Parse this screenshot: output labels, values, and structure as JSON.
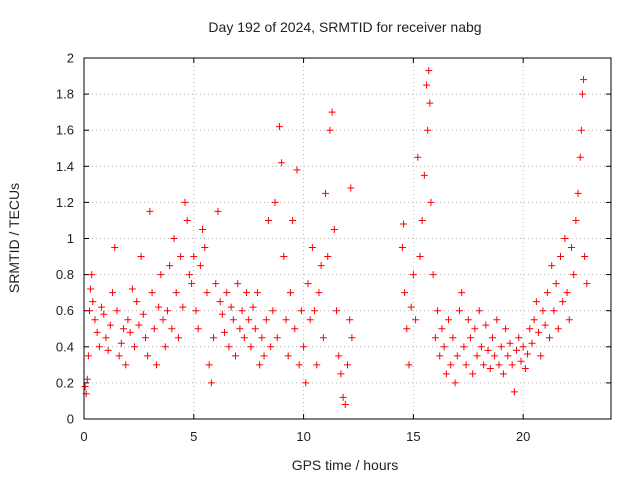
{
  "chart_data": {
    "type": "scatter",
    "title": "Day 192 of 2024, SRMTID for receiver nabg",
    "xlabel": "GPS time / hours",
    "ylabel": "SRMTID / TECUs",
    "xlim": [
      0,
      24
    ],
    "ylim": [
      0,
      2
    ],
    "xticks": [
      0,
      5,
      10,
      15,
      20
    ],
    "yticks": [
      0,
      0.2,
      0.4,
      0.6,
      0.8,
      1,
      1.2,
      1.4,
      1.6,
      1.8,
      2
    ],
    "xtick_labels": [
      "0",
      "5",
      "10",
      "15",
      "20"
    ],
    "ytick_labels": [
      "0",
      "0.2",
      "0.4",
      "0.6",
      "0.8",
      "1",
      "1.2",
      "1.4",
      "1.6",
      "1.8",
      "2"
    ],
    "grid": true,
    "marker": "+",
    "series_color": "#ff0000",
    "series": [
      {
        "name": "SRMTID",
        "points": [
          [
            0.05,
            0.18
          ],
          [
            0.1,
            0.14
          ],
          [
            0.15,
            0.22
          ],
          [
            0.2,
            0.35
          ],
          [
            0.25,
            0.6
          ],
          [
            0.3,
            0.72
          ],
          [
            0.35,
            0.8
          ],
          [
            0.4,
            0.65
          ],
          [
            0.5,
            0.55
          ],
          [
            0.6,
            0.48
          ],
          [
            0.7,
            0.4
          ],
          [
            0.8,
            0.62
          ],
          [
            0.9,
            0.58
          ],
          [
            1.0,
            0.45
          ],
          [
            1.1,
            0.38
          ],
          [
            1.2,
            0.52
          ],
          [
            1.3,
            0.7
          ],
          [
            1.4,
            0.95
          ],
          [
            1.5,
            0.6
          ],
          [
            1.6,
            0.35
          ],
          [
            1.7,
            0.42
          ],
          [
            1.8,
            0.5
          ],
          [
            1.9,
            0.3
          ],
          [
            2.0,
            0.55
          ],
          [
            2.1,
            0.48
          ],
          [
            2.2,
            0.72
          ],
          [
            2.3,
            0.4
          ],
          [
            2.4,
            0.65
          ],
          [
            2.5,
            0.52
          ],
          [
            2.6,
            0.9
          ],
          [
            2.7,
            0.58
          ],
          [
            2.8,
            0.45
          ],
          [
            2.9,
            0.35
          ],
          [
            3.0,
            1.15
          ],
          [
            3.1,
            0.7
          ],
          [
            3.2,
            0.5
          ],
          [
            3.3,
            0.3
          ],
          [
            3.4,
            0.62
          ],
          [
            3.5,
            0.8
          ],
          [
            3.6,
            0.55
          ],
          [
            3.7,
            0.4
          ],
          [
            3.8,
            0.6
          ],
          [
            3.9,
            0.85
          ],
          [
            4.0,
            0.5
          ],
          [
            4.1,
            1.0
          ],
          [
            4.2,
            0.7
          ],
          [
            4.3,
            0.45
          ],
          [
            4.4,
            0.9
          ],
          [
            4.5,
            0.62
          ],
          [
            4.6,
            1.2
          ],
          [
            4.7,
            1.1
          ],
          [
            4.8,
            0.8
          ],
          [
            4.9,
            0.75
          ],
          [
            5.0,
            0.9
          ],
          [
            5.1,
            0.6
          ],
          [
            5.2,
            0.5
          ],
          [
            5.3,
            0.85
          ],
          [
            5.4,
            1.05
          ],
          [
            5.5,
            0.95
          ],
          [
            5.6,
            0.7
          ],
          [
            5.7,
            0.3
          ],
          [
            5.8,
            0.2
          ],
          [
            5.9,
            0.45
          ],
          [
            6.0,
            0.75
          ],
          [
            6.1,
            1.15
          ],
          [
            6.2,
            0.65
          ],
          [
            6.3,
            0.58
          ],
          [
            6.4,
            0.48
          ],
          [
            6.5,
            0.7
          ],
          [
            6.6,
            0.4
          ],
          [
            6.7,
            0.62
          ],
          [
            6.8,
            0.55
          ],
          [
            6.9,
            0.35
          ],
          [
            7.0,
            0.75
          ],
          [
            7.1,
            0.5
          ],
          [
            7.2,
            0.6
          ],
          [
            7.3,
            0.45
          ],
          [
            7.4,
            0.7
          ],
          [
            7.5,
            0.55
          ],
          [
            7.6,
            0.4
          ],
          [
            7.7,
            0.62
          ],
          [
            7.8,
            0.5
          ],
          [
            7.9,
            0.7
          ],
          [
            8.0,
            0.3
          ],
          [
            8.1,
            0.45
          ],
          [
            8.2,
            0.35
          ],
          [
            8.3,
            0.55
          ],
          [
            8.4,
            1.1
          ],
          [
            8.5,
            0.4
          ],
          [
            8.6,
            0.6
          ],
          [
            8.7,
            1.2
          ],
          [
            8.8,
            0.45
          ],
          [
            8.9,
            1.62
          ],
          [
            9.0,
            1.42
          ],
          [
            9.1,
            0.9
          ],
          [
            9.2,
            0.55
          ],
          [
            9.3,
            0.35
          ],
          [
            9.4,
            0.7
          ],
          [
            9.5,
            1.1
          ],
          [
            9.6,
            0.5
          ],
          [
            9.7,
            1.38
          ],
          [
            9.8,
            0.3
          ],
          [
            9.9,
            0.6
          ],
          [
            10.0,
            0.4
          ],
          [
            10.1,
            0.2
          ],
          [
            10.2,
            0.75
          ],
          [
            10.3,
            0.55
          ],
          [
            10.4,
            0.95
          ],
          [
            10.5,
            0.6
          ],
          [
            10.6,
            0.3
          ],
          [
            10.7,
            0.7
          ],
          [
            10.8,
            0.85
          ],
          [
            10.9,
            0.45
          ],
          [
            11.0,
            1.25
          ],
          [
            11.1,
            0.9
          ],
          [
            11.2,
            1.6
          ],
          [
            11.3,
            1.7
          ],
          [
            11.4,
            1.05
          ],
          [
            11.5,
            0.6
          ],
          [
            11.6,
            0.35
          ],
          [
            11.7,
            0.25
          ],
          [
            11.8,
            0.12
          ],
          [
            11.9,
            0.08
          ],
          [
            12.0,
            0.3
          ],
          [
            12.1,
            0.55
          ],
          [
            12.15,
            1.28
          ],
          [
            12.2,
            0.45
          ],
          [
            14.5,
            0.95
          ],
          [
            14.55,
            1.08
          ],
          [
            14.6,
            0.7
          ],
          [
            14.7,
            0.5
          ],
          [
            14.8,
            0.3
          ],
          [
            14.9,
            0.62
          ],
          [
            15.0,
            0.8
          ],
          [
            15.1,
            0.55
          ],
          [
            15.2,
            1.45
          ],
          [
            15.3,
            0.9
          ],
          [
            15.4,
            1.1
          ],
          [
            15.5,
            1.35
          ],
          [
            15.6,
            1.85
          ],
          [
            15.65,
            1.6
          ],
          [
            15.7,
            1.93
          ],
          [
            15.75,
            1.75
          ],
          [
            15.8,
            1.2
          ],
          [
            15.9,
            0.8
          ],
          [
            16.0,
            0.45
          ],
          [
            16.1,
            0.6
          ],
          [
            16.2,
            0.35
          ],
          [
            16.3,
            0.5
          ],
          [
            16.4,
            0.4
          ],
          [
            16.5,
            0.25
          ],
          [
            16.6,
            0.55
          ],
          [
            16.7,
            0.3
          ],
          [
            16.8,
            0.45
          ],
          [
            16.9,
            0.2
          ],
          [
            17.0,
            0.35
          ],
          [
            17.1,
            0.6
          ],
          [
            17.2,
            0.7
          ],
          [
            17.3,
            0.4
          ],
          [
            17.4,
            0.3
          ],
          [
            17.5,
            0.55
          ],
          [
            17.6,
            0.45
          ],
          [
            17.7,
            0.25
          ],
          [
            17.8,
            0.5
          ],
          [
            17.9,
            0.35
          ],
          [
            18.0,
            0.6
          ],
          [
            18.1,
            0.4
          ],
          [
            18.2,
            0.3
          ],
          [
            18.3,
            0.52
          ],
          [
            18.4,
            0.38
          ],
          [
            18.5,
            0.28
          ],
          [
            18.6,
            0.45
          ],
          [
            18.7,
            0.35
          ],
          [
            18.8,
            0.55
          ],
          [
            18.9,
            0.3
          ],
          [
            19.0,
            0.4
          ],
          [
            19.1,
            0.25
          ],
          [
            19.2,
            0.5
          ],
          [
            19.3,
            0.35
          ],
          [
            19.4,
            0.42
          ],
          [
            19.5,
            0.3
          ],
          [
            19.6,
            0.15
          ],
          [
            19.7,
            0.38
          ],
          [
            19.8,
            0.45
          ],
          [
            19.9,
            0.32
          ],
          [
            20.0,
            0.4
          ],
          [
            20.1,
            0.28
          ],
          [
            20.2,
            0.36
          ],
          [
            20.3,
            0.5
          ],
          [
            20.4,
            0.42
          ],
          [
            20.5,
            0.55
          ],
          [
            20.6,
            0.65
          ],
          [
            20.7,
            0.48
          ],
          [
            20.8,
            0.35
          ],
          [
            20.9,
            0.6
          ],
          [
            21.0,
            0.52
          ],
          [
            21.1,
            0.7
          ],
          [
            21.2,
            0.45
          ],
          [
            21.3,
            0.85
          ],
          [
            21.4,
            0.6
          ],
          [
            21.5,
            0.75
          ],
          [
            21.6,
            0.5
          ],
          [
            21.7,
            0.9
          ],
          [
            21.8,
            0.65
          ],
          [
            21.9,
            1.0
          ],
          [
            22.0,
            0.7
          ],
          [
            22.1,
            0.55
          ],
          [
            22.2,
            0.95
          ],
          [
            22.3,
            0.8
          ],
          [
            22.4,
            1.1
          ],
          [
            22.5,
            1.25
          ],
          [
            22.6,
            1.45
          ],
          [
            22.65,
            1.6
          ],
          [
            22.7,
            1.8
          ],
          [
            22.75,
            1.88
          ],
          [
            22.8,
            0.9
          ],
          [
            22.9,
            0.75
          ]
        ]
      }
    ]
  }
}
